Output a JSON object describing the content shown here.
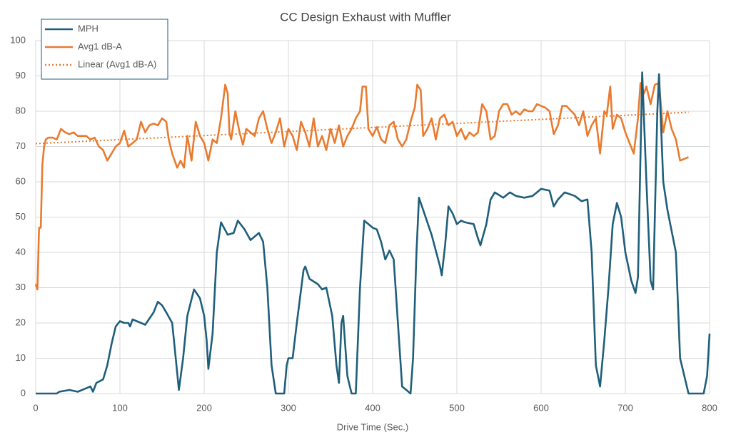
{
  "chart_data": {
    "type": "line",
    "title": "CC Design Exhaust with Muffler",
    "x_label": "Drive Time (Sec.)",
    "xlim": [
      0,
      800
    ],
    "xticks": [
      0,
      100,
      200,
      300,
      400,
      500,
      600,
      700,
      800
    ],
    "ylim": [
      0,
      100
    ],
    "yticks": [
      0,
      10,
      20,
      30,
      40,
      50,
      60,
      70,
      80,
      90,
      100
    ],
    "grid": true,
    "legend": "upper-left",
    "series": [
      {
        "name": "MPH",
        "color": "#1f5f7b",
        "style": "solid",
        "x": [
          0,
          25,
          28,
          40,
          50,
          60,
          65,
          68,
          72,
          80,
          85,
          90,
          95,
          100,
          105,
          110,
          112,
          115,
          120,
          130,
          140,
          145,
          150,
          155,
          162,
          165,
          170,
          175,
          180,
          188,
          195,
          200,
          203,
          205,
          210,
          215,
          220,
          228,
          235,
          240,
          248,
          255,
          265,
          270,
          275,
          280,
          285,
          295,
          298,
          300,
          305,
          310,
          318,
          320,
          325,
          335,
          340,
          345,
          352,
          357,
          360,
          363,
          365,
          370,
          375,
          380,
          385,
          390,
          395,
          400,
          405,
          410,
          415,
          420,
          425,
          430,
          435,
          440,
          445,
          448,
          452,
          455,
          460,
          470,
          480,
          482,
          486,
          490,
          495,
          500,
          505,
          510,
          520,
          525,
          528,
          535,
          540,
          545,
          555,
          563,
          570,
          580,
          590,
          600,
          610,
          615,
          620,
          628,
          640,
          648,
          655,
          660,
          665,
          670,
          675,
          680,
          685,
          690,
          695,
          700,
          707,
          712,
          715,
          720,
          725,
          730,
          733,
          738,
          740,
          745,
          750,
          760,
          765,
          770,
          775,
          785,
          793,
          797,
          800
        ],
        "values": [
          0,
          0,
          0.5,
          1,
          0.5,
          1.5,
          2,
          0.5,
          3,
          4,
          8,
          14,
          19,
          20.5,
          20,
          20,
          19,
          21,
          20.5,
          19.5,
          23,
          26,
          25,
          23,
          20,
          13,
          1,
          10,
          22,
          29.5,
          27,
          22,
          15,
          7,
          17,
          40,
          48.5,
          45,
          45.5,
          49,
          46.5,
          43.5,
          45.5,
          43,
          30,
          8,
          0,
          0,
          8,
          10,
          10,
          20,
          35,
          36,
          32.5,
          31,
          29.5,
          30,
          22,
          8,
          3,
          20,
          22,
          5,
          0,
          0,
          30,
          49,
          48,
          47,
          46.5,
          43,
          38,
          40.5,
          38,
          20,
          2,
          1,
          0,
          10,
          40,
          55.5,
          52,
          45,
          36,
          33.5,
          42,
          53,
          51,
          48,
          49,
          48.5,
          48,
          44,
          42,
          48,
          55,
          57,
          55.5,
          57,
          56,
          55.5,
          56,
          58,
          57.5,
          53,
          55,
          57,
          56,
          54.5,
          55,
          40,
          8,
          2,
          15,
          30,
          48,
          54,
          50,
          40,
          32,
          28.5,
          33,
          91,
          60,
          32,
          29.5,
          80,
          90.5,
          60,
          52,
          40,
          10,
          5,
          0,
          0,
          0,
          5,
          17
        ]
      },
      {
        "name": "Avg1 dB-A",
        "color": "#e97b30",
        "style": "solid",
        "x": [
          0,
          2,
          4,
          6,
          8,
          10,
          12,
          15,
          20,
          25,
          30,
          35,
          40,
          45,
          50,
          55,
          60,
          65,
          70,
          75,
          80,
          85,
          90,
          95,
          100,
          105,
          110,
          115,
          120,
          125,
          130,
          135,
          140,
          145,
          150,
          155,
          158,
          162,
          168,
          172,
          176,
          180,
          185,
          190,
          195,
          200,
          205,
          210,
          215,
          220,
          225,
          228,
          230,
          232,
          237,
          242,
          246,
          250,
          260,
          265,
          270,
          275,
          280,
          285,
          290,
          295,
          300,
          305,
          310,
          315,
          320,
          325,
          330,
          335,
          340,
          345,
          350,
          355,
          360,
          365,
          370,
          375,
          380,
          385,
          388,
          392,
          395,
          400,
          405,
          410,
          415,
          420,
          425,
          430,
          435,
          440,
          445,
          450,
          453,
          457,
          460,
          465,
          470,
          475,
          480,
          485,
          490,
          495,
          500,
          505,
          510,
          515,
          520,
          525,
          530,
          535,
          540,
          545,
          550,
          555,
          560,
          565,
          570,
          575,
          580,
          585,
          590,
          595,
          600,
          605,
          610,
          615,
          620,
          625,
          630,
          640,
          645,
          650,
          655,
          660,
          665,
          670,
          675,
          678,
          682,
          685,
          690,
          695,
          700,
          705,
          710,
          715,
          718,
          722,
          725,
          730,
          735,
          740,
          745,
          750,
          755,
          760,
          765,
          770,
          775
        ],
        "values": [
          31,
          29.5,
          47,
          47,
          65,
          70,
          72,
          72.5,
          72.5,
          72,
          75,
          74,
          73.5,
          74,
          73,
          73,
          73,
          72,
          72.5,
          70,
          69,
          66,
          68,
          70,
          71,
          74.5,
          70,
          71,
          72,
          77,
          74,
          76,
          76.5,
          76,
          78,
          77,
          72,
          68,
          64,
          66,
          64,
          73,
          66,
          77,
          73,
          71,
          66,
          72,
          71,
          78,
          87.5,
          85,
          74,
          72,
          80,
          74,
          70.5,
          75,
          73,
          78,
          80,
          75,
          71,
          74,
          78,
          70,
          75,
          73,
          69,
          77,
          74,
          70,
          78,
          70,
          73,
          69,
          75,
          71,
          76,
          70,
          73,
          75,
          78,
          80,
          87,
          87,
          75,
          73,
          75.5,
          72,
          71,
          76,
          77,
          72,
          70,
          72,
          77,
          81,
          87.5,
          86,
          73,
          75,
          78,
          72,
          78,
          79,
          76,
          77,
          73,
          75,
          72,
          74,
          73,
          74,
          82,
          80,
          72,
          73,
          80,
          82,
          82,
          79,
          80,
          79,
          80.5,
          80,
          80,
          82,
          81.5,
          81,
          80,
          73.5,
          76,
          81.5,
          81.5,
          79,
          76,
          80,
          73,
          76,
          78,
          68,
          80,
          79,
          87,
          75,
          79,
          78,
          74,
          71,
          68,
          78,
          88,
          85,
          87,
          82,
          87.5,
          88,
          74,
          80,
          75,
          72,
          66,
          66.5,
          67
        ]
      },
      {
        "name": "Linear (Avg1 dB-A)",
        "color": "#e97b30",
        "style": "dotted",
        "x": [
          0,
          775
        ],
        "values": [
          70.8,
          79.7
        ]
      }
    ]
  }
}
